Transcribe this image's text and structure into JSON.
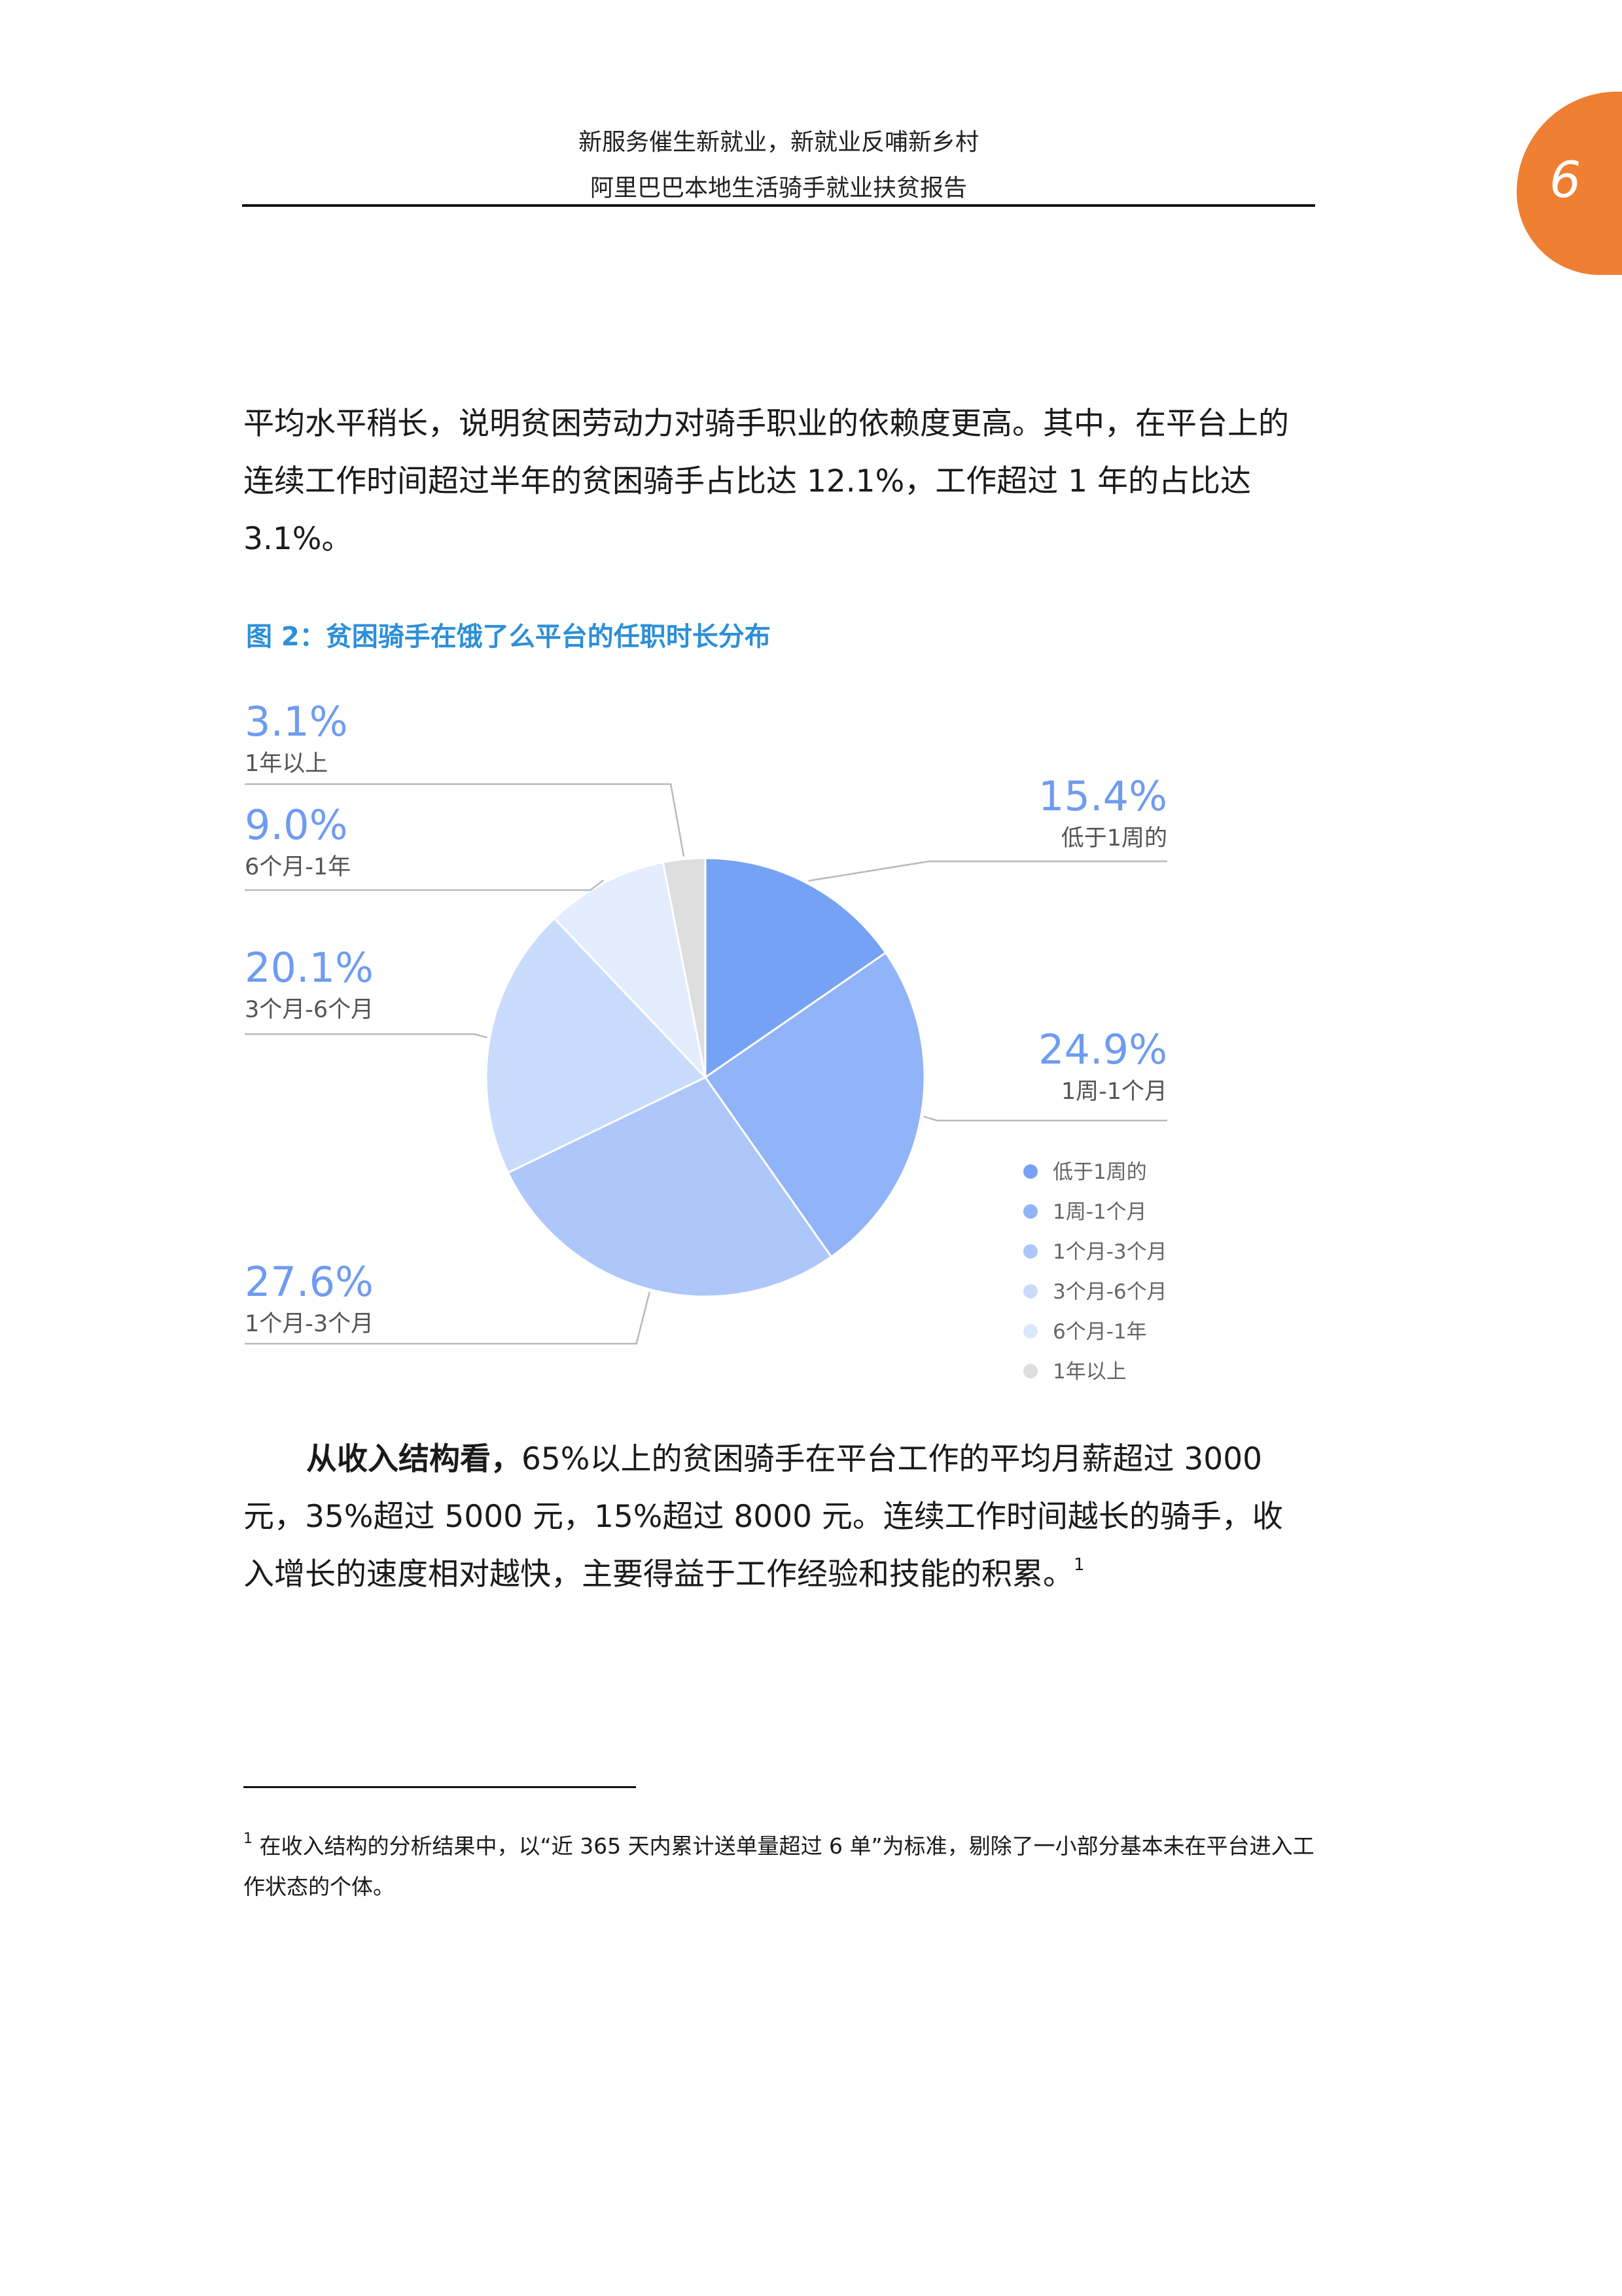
{
  "header": {
    "line1": "新服务催生新就业，新就业反哺新乡村",
    "line2": "阿里巴巴本地生活骑手就业扶贫报告",
    "page_number": "6",
    "tab_color": "#ee7f33"
  },
  "paragraph1": "平均水平稍长，说明贫困劳动力对骑手职业的依赖度更高。其中，在平台上的连续工作时间超过半年的贫困骑手占比达 12.1%，工作超过 1 年的占比达 3.1%。",
  "figure": {
    "title": "图 2：贫困骑手在饿了么平台的任职时长分布"
  },
  "chart_data": {
    "type": "pie",
    "title": "图 2：贫困骑手在饿了么平台的任职时长分布",
    "unit": "%",
    "legend_position": "bottom-right",
    "slices": [
      {
        "label": "低于1周的",
        "value": 15.4,
        "display": "15.4%",
        "color": "#76a2f5"
      },
      {
        "label": "1周-1个月",
        "value": 24.9,
        "display": "24.9%",
        "color": "#91b3f7"
      },
      {
        "label": "1个月-3个月",
        "value": 27.6,
        "display": "27.6%",
        "color": "#adc7fa"
      },
      {
        "label": "3个月-6个月",
        "value": 20.1,
        "display": "20.1%",
        "color": "#cadcfc"
      },
      {
        "label": "6个月-1年",
        "value": 9.0,
        "display": "9.0%",
        "color": "#e3edfe"
      },
      {
        "label": "1年以上",
        "value": 3.1,
        "display": "3.1%",
        "color": "#dedede"
      }
    ]
  },
  "paragraph2": {
    "lead": "从收入结构看，",
    "body": "65%以上的贫困骑手在平台工作的平均月薪超过 3000 元，35%超过 5000 元，15%超过 8000 元。连续工作时间越长的骑手，收入增长的速度相对越快，主要得益于工作经验和技能的积累。",
    "footnote_ref": "1"
  },
  "footnote": {
    "marker": "1",
    "text": "在收入结构的分析结果中，以“近 365 天内累计送单量超过 6 单”为标准，剔除了一小部分基本未在平台进入工作状态的个体。"
  }
}
